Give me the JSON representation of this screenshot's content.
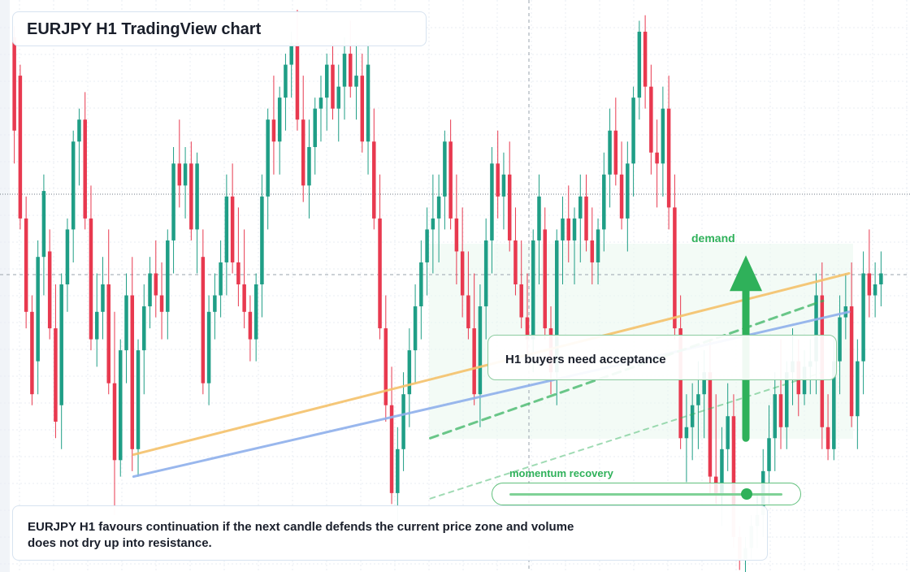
{
  "header": {
    "title": "EURJPY H1 TradingView chart"
  },
  "annotations": {
    "callout": "H1 buyers need acceptance",
    "zone_label": "demand",
    "momentum_label": "momentum recovery",
    "momentum_level": 0.87,
    "summary": "EURJPY H1 favours continuation if the next candle defends the current price zone and volume does not dry up into resistance."
  },
  "colors": {
    "bull": "#1f9e86",
    "bear": "#e8394f",
    "accent_green": "#2fb15a",
    "trend_orange": "#f5c26b",
    "trend_blue": "#8fb0ec"
  },
  "chart_data": {
    "type": "candlestick",
    "symbol": "EURJPY",
    "timeframe": "H1",
    "ylim": [
      0,
      100
    ],
    "candles": [
      [
        95,
        97,
        72,
        78
      ],
      [
        88,
        90,
        60,
        62
      ],
      [
        62,
        66,
        42,
        45
      ],
      [
        45,
        48,
        28,
        30
      ],
      [
        36,
        58,
        30,
        55
      ],
      [
        55,
        70,
        48,
        67
      ],
      [
        56,
        60,
        40,
        42
      ],
      [
        42,
        50,
        22,
        25
      ],
      [
        28,
        52,
        20,
        50
      ],
      [
        50,
        62,
        45,
        60
      ],
      [
        60,
        78,
        54,
        76
      ],
      [
        76,
        82,
        68,
        80
      ],
      [
        80,
        85,
        60,
        62
      ],
      [
        62,
        68,
        38,
        40
      ],
      [
        40,
        52,
        35,
        45
      ],
      [
        45,
        55,
        40,
        50
      ],
      [
        50,
        60,
        30,
        32
      ],
      [
        32,
        45,
        8,
        18
      ],
      [
        18,
        40,
        15,
        38
      ],
      [
        38,
        52,
        32,
        48
      ],
      [
        48,
        55,
        16,
        20
      ],
      [
        20,
        40,
        15,
        38
      ],
      [
        38,
        50,
        30,
        46
      ],
      [
        46,
        55,
        42,
        52
      ],
      [
        52,
        58,
        44,
        48
      ],
      [
        48,
        54,
        40,
        45
      ],
      [
        45,
        60,
        40,
        58
      ],
      [
        58,
        75,
        52,
        72
      ],
      [
        72,
        80,
        64,
        68
      ],
      [
        68,
        75,
        62,
        72
      ],
      [
        72,
        76,
        58,
        60
      ],
      [
        60,
        74,
        52,
        72
      ],
      [
        55,
        60,
        30,
        32
      ],
      [
        32,
        48,
        28,
        45
      ],
      [
        45,
        52,
        40,
        48
      ],
      [
        48,
        58,
        44,
        54
      ],
      [
        54,
        70,
        48,
        66
      ],
      [
        66,
        72,
        52,
        54
      ],
      [
        54,
        64,
        46,
        50
      ],
      [
        50,
        60,
        42,
        45
      ],
      [
        45,
        48,
        36,
        40
      ],
      [
        40,
        52,
        36,
        50
      ],
      [
        50,
        70,
        44,
        66
      ],
      [
        66,
        82,
        60,
        80
      ],
      [
        80,
        88,
        70,
        76
      ],
      [
        76,
        86,
        70,
        84
      ],
      [
        84,
        92,
        78,
        90
      ],
      [
        90,
        96,
        84,
        94
      ],
      [
        94,
        100,
        78,
        80
      ],
      [
        80,
        88,
        65,
        68
      ],
      [
        68,
        80,
        62,
        75
      ],
      [
        75,
        84,
        70,
        82
      ],
      [
        82,
        88,
        76,
        84
      ],
      [
        84,
        92,
        78,
        90
      ],
      [
        90,
        94,
        80,
        82
      ],
      [
        82,
        90,
        76,
        86
      ],
      [
        86,
        95,
        80,
        92
      ],
      [
        92,
        98,
        84,
        86
      ],
      [
        86,
        94,
        80,
        88
      ],
      [
        88,
        92,
        74,
        76
      ],
      [
        76,
        94,
        70,
        90
      ],
      [
        76,
        82,
        60,
        62
      ],
      [
        62,
        70,
        40,
        42
      ],
      [
        42,
        48,
        25,
        28
      ],
      [
        28,
        35,
        10,
        12
      ],
      [
        12,
        24,
        6,
        20
      ],
      [
        20,
        34,
        16,
        30
      ],
      [
        30,
        42,
        24,
        38
      ],
      [
        38,
        50,
        32,
        46
      ],
      [
        46,
        58,
        40,
        54
      ],
      [
        54,
        64,
        48,
        60
      ],
      [
        60,
        70,
        52,
        62
      ],
      [
        62,
        70,
        54,
        66
      ],
      [
        66,
        78,
        60,
        76
      ],
      [
        76,
        80,
        60,
        62
      ],
      [
        62,
        70,
        50,
        56
      ],
      [
        56,
        64,
        44,
        48
      ],
      [
        48,
        56,
        40,
        42
      ],
      [
        42,
        52,
        28,
        30
      ],
      [
        30,
        50,
        24,
        46
      ],
      [
        46,
        62,
        40,
        58
      ],
      [
        58,
        75,
        52,
        72
      ],
      [
        72,
        78,
        62,
        66
      ],
      [
        66,
        74,
        60,
        70
      ],
      [
        70,
        76,
        56,
        58
      ],
      [
        58,
        64,
        48,
        50
      ],
      [
        50,
        58,
        42,
        44
      ],
      [
        44,
        52,
        36,
        40
      ],
      [
        40,
        60,
        34,
        58
      ],
      [
        58,
        70,
        50,
        66
      ],
      [
        60,
        64,
        40,
        42
      ],
      [
        42,
        46,
        30,
        34
      ],
      [
        34,
        60,
        28,
        58
      ],
      [
        58,
        66,
        50,
        62
      ],
      [
        62,
        68,
        54,
        58
      ],
      [
        58,
        64,
        50,
        62
      ],
      [
        62,
        70,
        54,
        66
      ],
      [
        66,
        70,
        56,
        58
      ],
      [
        58,
        64,
        50,
        54
      ],
      [
        54,
        62,
        50,
        60
      ],
      [
        60,
        74,
        56,
        70
      ],
      [
        70,
        82,
        64,
        78
      ],
      [
        78,
        84,
        68,
        70
      ],
      [
        70,
        76,
        60,
        62
      ],
      [
        62,
        76,
        56,
        72
      ],
      [
        72,
        86,
        66,
        84
      ],
      [
        84,
        98,
        80,
        96
      ],
      [
        96,
        99,
        82,
        86
      ],
      [
        86,
        90,
        70,
        74
      ],
      [
        74,
        80,
        64,
        72
      ],
      [
        72,
        86,
        66,
        82
      ],
      [
        82,
        88,
        60,
        64
      ],
      [
        64,
        70,
        40,
        42
      ],
      [
        42,
        48,
        20,
        22
      ],
      [
        22,
        30,
        14,
        24
      ],
      [
        24,
        32,
        18,
        28
      ],
      [
        28,
        36,
        20,
        30
      ],
      [
        30,
        38,
        22,
        34
      ],
      [
        34,
        40,
        12,
        15
      ],
      [
        15,
        30,
        10,
        12
      ],
      [
        12,
        24,
        6,
        20
      ],
      [
        20,
        32,
        16,
        26
      ],
      [
        26,
        30,
        2,
        4
      ],
      [
        4,
        6,
        -2,
        0
      ],
      [
        0,
        4,
        -4,
        2
      ],
      [
        2,
        8,
        0,
        6
      ],
      [
        6,
        12,
        2,
        8
      ],
      [
        8,
        20,
        4,
        16
      ],
      [
        16,
        28,
        10,
        22
      ],
      [
        22,
        34,
        16,
        30
      ],
      [
        30,
        40,
        20,
        24
      ],
      [
        24,
        36,
        20,
        34
      ],
      [
        34,
        42,
        28,
        36
      ],
      [
        36,
        40,
        26,
        30
      ],
      [
        30,
        38,
        28,
        35
      ],
      [
        35,
        40,
        30,
        36
      ],
      [
        36,
        52,
        30,
        48
      ],
      [
        48,
        54,
        20,
        24
      ],
      [
        24,
        30,
        18,
        20
      ],
      [
        20,
        40,
        18,
        36
      ],
      [
        36,
        48,
        30,
        44
      ],
      [
        44,
        52,
        40,
        46
      ],
      [
        46,
        54,
        24,
        26
      ],
      [
        26,
        40,
        20,
        36
      ],
      [
        36,
        56,
        30,
        52
      ],
      [
        52,
        60,
        44,
        48
      ],
      [
        48,
        54,
        44,
        50
      ],
      [
        50,
        56,
        46,
        52
      ]
    ],
    "trendlines": [
      {
        "style": "solid",
        "color": "trend_orange",
        "from": [
          0.14,
          19
        ],
        "to": [
          0.96,
          52
        ]
      },
      {
        "style": "solid",
        "color": "trend_blue",
        "from": [
          0.14,
          15
        ],
        "to": [
          0.96,
          45
        ]
      },
      {
        "style": "dashed",
        "color": "accent_green",
        "from": [
          0.48,
          22
        ],
        "to": [
          0.93,
          47
        ]
      },
      {
        "style": "dashed",
        "color": "accent_green",
        "from": [
          0.48,
          11
        ],
        "to": [
          0.93,
          34
        ]
      }
    ],
    "signal": {
      "type": "arrow-up",
      "from": 22,
      "to": 55
    }
  }
}
